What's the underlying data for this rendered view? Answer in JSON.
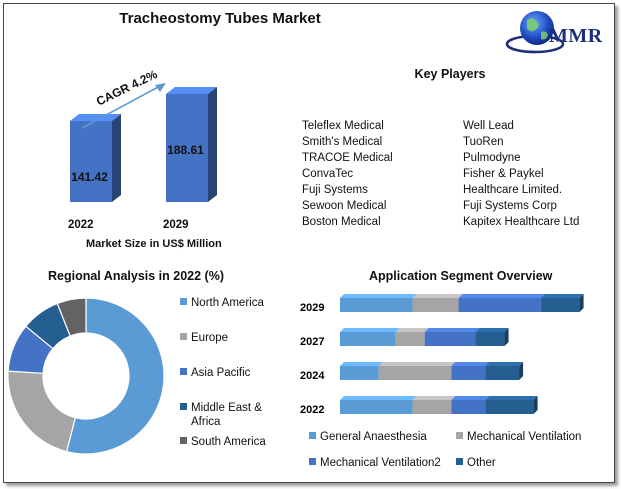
{
  "header": {
    "title": "Tracheostomy Tubes Market",
    "logo_text": "MMR"
  },
  "key_players": {
    "title": "Key Players",
    "left": [
      "Teleflex Medical",
      "Smith's Medical",
      "TRACOE Medical",
      "ConvaTec",
      "Fuji Systems",
      "Sewoon Medical",
      "Boston Medical"
    ],
    "right": [
      "Well Lead",
      "TuoRen",
      "Pulmodyne",
      "Fisher & Paykel",
      "Healthcare Limited.",
      "Fuji Systems Corp",
      "Kapitex Healthcare Ltd"
    ]
  },
  "chart_data": [
    {
      "type": "bar",
      "categories": [
        "2022",
        "2029"
      ],
      "values": [
        141.42,
        188.61
      ],
      "value_labels": [
        "141.42",
        "188.61"
      ],
      "xlabel": "Market Size in US$ Million",
      "annotation": "CAGR 4.2%",
      "bar_color": "#4472c4"
    },
    {
      "type": "pie",
      "donut": true,
      "title": "Regional Analysis in 2022 (%)",
      "labels": [
        "North America",
        "Europe",
        "Asia Pacific",
        "Middle East & Africa",
        "South America"
      ],
      "legend_lines": [
        [
          "North America"
        ],
        [
          "Europe"
        ],
        [
          "Asia Pacific"
        ],
        [
          "Middle East &",
          "Africa"
        ],
        [
          "South America"
        ]
      ],
      "values": [
        54,
        22,
        10,
        8,
        6
      ],
      "colors": [
        "#5b9bd5",
        "#a5a5a5",
        "#4472c4",
        "#255e91",
        "#636363"
      ],
      "legend": "right"
    },
    {
      "type": "bar",
      "orientation": "horizontal",
      "stacked": true,
      "title": "Application Segment Overview",
      "categories": [
        "2029",
        "2027",
        "2024",
        "2022"
      ],
      "series": [
        {
          "name": "General Anaesthesia",
          "values": [
            30,
            23,
            16,
            30
          ],
          "color": "#5b9bd5"
        },
        {
          "name": "Mechanical Ventilation",
          "values": [
            19,
            12,
            30,
            16
          ],
          "color": "#a5a5a5"
        },
        {
          "name": "Mechanical Ventilation2",
          "values": [
            34,
            21,
            14,
            14
          ],
          "color": "#4472c4"
        },
        {
          "name": "Other",
          "values": [
            16,
            12,
            14,
            20
          ],
          "color": "#255e91"
        }
      ],
      "legend": "bottom"
    }
  ]
}
